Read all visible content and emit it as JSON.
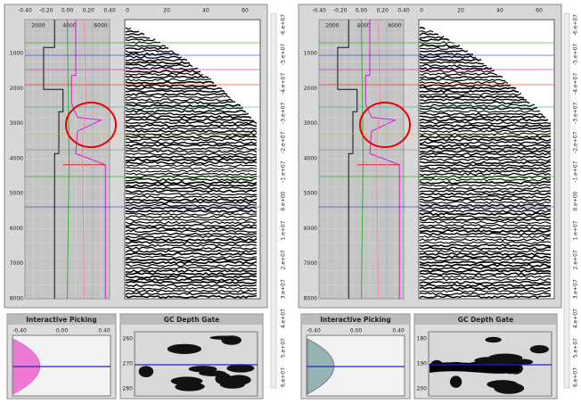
{
  "panels": [
    {
      "log_axis": [
        "-0.40",
        "-0.20",
        "0.00",
        "0.20",
        "0.40"
      ],
      "log_axis2": [
        "2000",
        "4000",
        "6000"
      ],
      "depth_labels": [
        "1000",
        "2000",
        "3000",
        "4000",
        "5000",
        "6000",
        "7000",
        "8000"
      ],
      "seismic_axis": [
        "0",
        "20",
        "40",
        "60"
      ],
      "picking": {
        "title": "Interactive Picking",
        "axis": [
          "-0.40",
          "0.00",
          "0.40"
        ]
      },
      "gate": {
        "title": "GC Depth Gate",
        "axis": [
          "260",
          "270",
          "280"
        ]
      }
    },
    {
      "log_axis": [
        "-0.40",
        "-0.20",
        "0.00",
        "0.20",
        "0.40"
      ],
      "log_axis2": [
        "2000",
        "4000",
        "6000"
      ],
      "depth_labels": [
        "1000",
        "2000",
        "3000",
        "4000",
        "5000",
        "6000",
        "7000",
        "8000"
      ],
      "seismic_axis": [
        "0",
        "20",
        "40",
        "60"
      ],
      "picking": {
        "title": "Interactive Picking",
        "axis": [
          "-0.40",
          "0.00",
          "0.40"
        ]
      },
      "gate": {
        "title": "GC Depth Gate",
        "axis": [
          "180",
          "190",
          "200"
        ]
      }
    }
  ],
  "colorbar_labels": [
    "-6.e+07",
    "-5.e+07",
    "-4.e+07",
    "-3.e+07",
    "-2.e+07",
    "-1.e+07",
    "0.e+00",
    "1.e+07",
    "2.e+07",
    "3.e+07",
    "4.e+07",
    "5.e+07",
    "6.e+07"
  ]
}
